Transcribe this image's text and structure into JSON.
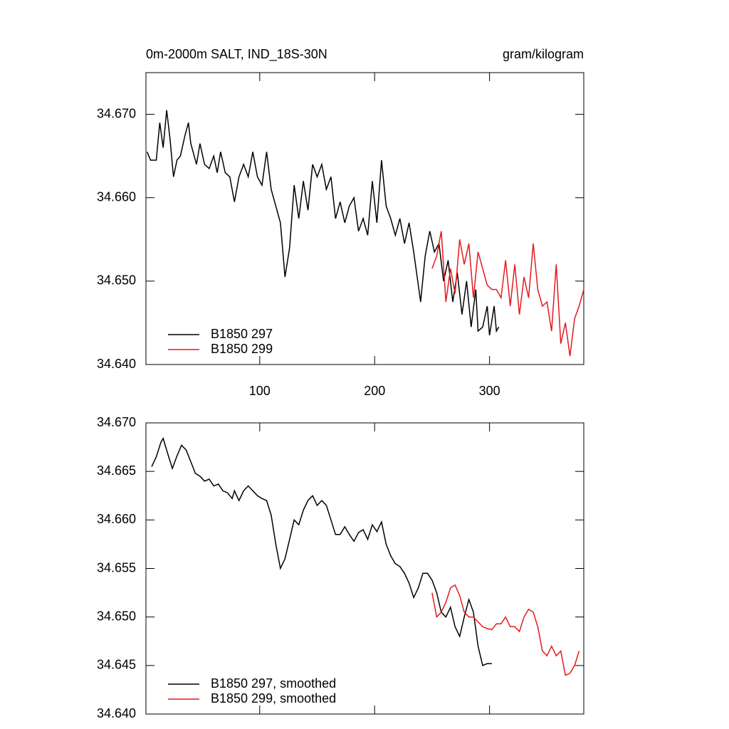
{
  "chart_data": [
    {
      "type": "line",
      "title": "0m-2000m SALT, IND_18S-30N",
      "units": "gram/kilogram",
      "xlim": [
        1,
        382
      ],
      "ylim": [
        34.64,
        34.675
      ],
      "xticks": [
        100,
        200,
        300
      ],
      "xtick_labels": true,
      "yticks": [
        {
          "value": 34.64,
          "label": "34.640"
        },
        {
          "value": 34.65,
          "label": "34.650"
        },
        {
          "value": 34.66,
          "label": "34.660"
        },
        {
          "value": 34.67,
          "label": "34.670"
        }
      ],
      "legend": "lower left",
      "series": [
        {
          "name": "B1850 297",
          "color": "#000000",
          "x": [
            2,
            5,
            10,
            13,
            16,
            19,
            22,
            25,
            28,
            31,
            35,
            38,
            40,
            45,
            48,
            52,
            56,
            60,
            63,
            66,
            70,
            74,
            78,
            82,
            86,
            90,
            94,
            98,
            102,
            106,
            110,
            114,
            118,
            122,
            126,
            130,
            134,
            138,
            142,
            146,
            150,
            154,
            158,
            162,
            166,
            170,
            174,
            178,
            182,
            186,
            190,
            194,
            198,
            202,
            206,
            210,
            214,
            218,
            222,
            226,
            230,
            234,
            238,
            240,
            244,
            248,
            252,
            256,
            260,
            264,
            268,
            272,
            276,
            280,
            284,
            288,
            290,
            294,
            298,
            300,
            304,
            306,
            308
          ],
          "values": [
            34.6655,
            34.6645,
            34.6645,
            34.669,
            34.666,
            34.6705,
            34.667,
            34.6625,
            34.6645,
            34.665,
            34.6675,
            34.669,
            34.6665,
            34.664,
            34.6665,
            34.664,
            34.6635,
            34.665,
            34.663,
            34.6655,
            34.663,
            34.6625,
            34.6595,
            34.6625,
            34.664,
            34.6625,
            34.6655,
            34.6625,
            34.6615,
            34.6655,
            34.661,
            34.659,
            34.657,
            34.6505,
            34.654,
            34.6615,
            34.6575,
            34.662,
            34.6585,
            34.664,
            34.6625,
            34.664,
            34.661,
            34.6625,
            34.6575,
            34.6595,
            34.657,
            34.659,
            34.66,
            34.656,
            34.6575,
            34.6555,
            34.662,
            34.657,
            34.6645,
            34.659,
            34.6575,
            34.6555,
            34.6575,
            34.6545,
            34.657,
            34.6535,
            34.6495,
            34.6475,
            34.653,
            34.656,
            34.6535,
            34.6545,
            34.65,
            34.6525,
            34.6475,
            34.651,
            34.646,
            34.65,
            34.6445,
            34.649,
            34.644,
            34.6445,
            34.647,
            34.6435,
            34.647,
            34.644,
            34.6445
          ]
        },
        {
          "name": "B1850 299",
          "color": "#e31a1c",
          "x": [
            250,
            254,
            258,
            262,
            266,
            270,
            274,
            278,
            282,
            286,
            290,
            294,
            298,
            302,
            306,
            310,
            314,
            318,
            322,
            326,
            330,
            334,
            338,
            342,
            346,
            350,
            354,
            358,
            362,
            366,
            370,
            374,
            378,
            382
          ],
          "values": [
            34.6515,
            34.653,
            34.656,
            34.6475,
            34.6515,
            34.6485,
            34.655,
            34.652,
            34.6545,
            34.648,
            34.6535,
            34.6515,
            34.6495,
            34.649,
            34.649,
            34.648,
            34.6525,
            34.647,
            34.652,
            34.646,
            34.6505,
            34.648,
            34.6545,
            34.649,
            34.647,
            34.6475,
            34.644,
            34.652,
            34.6425,
            34.645,
            34.641,
            34.6455,
            34.647,
            34.649
          ]
        }
      ]
    },
    {
      "type": "line",
      "xlim": [
        1,
        382
      ],
      "ylim": [
        34.64,
        34.67
      ],
      "xticks": [
        100,
        200,
        300
      ],
      "xtick_labels": false,
      "yticks": [
        {
          "value": 34.64,
          "label": "34.640"
        },
        {
          "value": 34.645,
          "label": "34.645"
        },
        {
          "value": 34.65,
          "label": "34.650"
        },
        {
          "value": 34.655,
          "label": "34.655"
        },
        {
          "value": 34.66,
          "label": "34.660"
        },
        {
          "value": 34.665,
          "label": "34.665"
        },
        {
          "value": 34.67,
          "label": "34.670"
        }
      ],
      "legend": "lower left",
      "series": [
        {
          "name": "B1850 297, smoothed",
          "color": "#000000",
          "x": [
            6,
            10,
            14,
            16,
            20,
            24,
            28,
            32,
            36,
            40,
            44,
            48,
            52,
            56,
            60,
            64,
            68,
            72,
            76,
            78,
            82,
            86,
            90,
            94,
            98,
            102,
            106,
            110,
            114,
            118,
            122,
            126,
            130,
            134,
            138,
            142,
            146,
            150,
            154,
            158,
            162,
            166,
            170,
            174,
            178,
            182,
            186,
            190,
            194,
            198,
            202,
            206,
            210,
            214,
            218,
            222,
            226,
            230,
            234,
            238,
            242,
            246,
            250,
            254,
            258,
            262,
            266,
            270,
            274,
            278,
            282,
            286,
            290,
            294,
            298,
            302
          ],
          "values": [
            34.6655,
            34.6665,
            34.668,
            34.6684,
            34.6668,
            34.6653,
            34.6666,
            34.6677,
            34.6672,
            34.666,
            34.6648,
            34.6645,
            34.664,
            34.6642,
            34.6635,
            34.6637,
            34.663,
            34.6628,
            34.6622,
            34.663,
            34.662,
            34.663,
            34.6635,
            34.663,
            34.6625,
            34.6622,
            34.662,
            34.6605,
            34.6575,
            34.655,
            34.656,
            34.658,
            34.66,
            34.6595,
            34.661,
            34.662,
            34.6625,
            34.6615,
            34.662,
            34.6615,
            34.66,
            34.6585,
            34.6585,
            34.6593,
            34.6585,
            34.6578,
            34.6587,
            34.659,
            34.658,
            34.6595,
            34.6588,
            34.6598,
            34.6575,
            34.6563,
            34.6555,
            34.6552,
            34.6545,
            34.6535,
            34.652,
            34.653,
            34.6545,
            34.6545,
            34.6538,
            34.6525,
            34.6505,
            34.65,
            34.651,
            34.649,
            34.648,
            34.65,
            34.6518,
            34.6505,
            34.647,
            34.645,
            34.6452,
            34.6452
          ]
        },
        {
          "name": "B1850 299, smoothed",
          "color": "#e31a1c",
          "x": [
            250,
            254,
            258,
            262,
            266,
            270,
            274,
            278,
            282,
            286,
            290,
            294,
            298,
            302,
            306,
            310,
            314,
            318,
            322,
            326,
            330,
            334,
            338,
            342,
            346,
            350,
            354,
            358,
            362,
            366,
            370,
            374,
            378
          ],
          "values": [
            34.6525,
            34.65,
            34.6505,
            34.6515,
            34.653,
            34.6533,
            34.6522,
            34.6505,
            34.65,
            34.65,
            34.6495,
            34.649,
            34.6488,
            34.6487,
            34.6493,
            34.6493,
            34.65,
            34.649,
            34.649,
            34.6485,
            34.65,
            34.6508,
            34.6505,
            34.649,
            34.6465,
            34.646,
            34.647,
            34.646,
            34.6465,
            34.644,
            34.6442,
            34.645,
            34.6465
          ]
        }
      ]
    }
  ]
}
